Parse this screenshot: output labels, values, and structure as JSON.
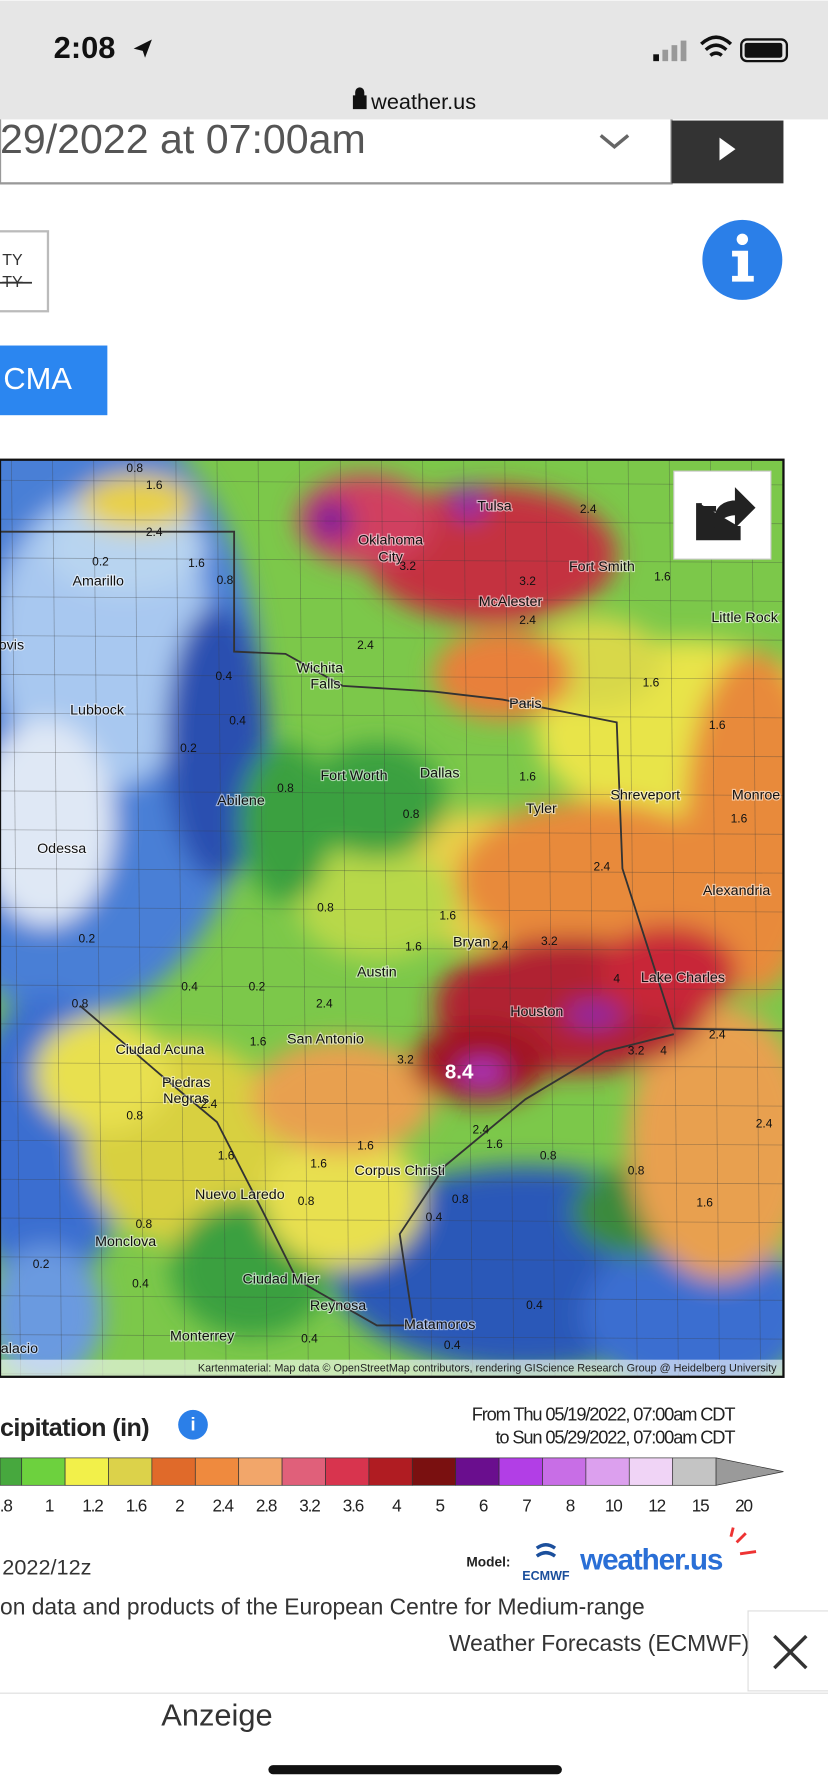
{
  "status": {
    "time": "2:08",
    "url": "weather.us"
  },
  "controls": {
    "date_text": "29/2022 at 07:00am",
    "toggle_top": "TY",
    "toggle_struck": "TY",
    "button": "CMA"
  },
  "map": {
    "attribution": "Kartenmaterial: Map data © OpenStreetMap contributors, rendering GIScience Research Group @ Heidelberg University",
    "cities": [
      "Tulsa",
      "Oklahoma",
      "City",
      "Fort Smith",
      "McAlester",
      "Little Rock",
      "Amarillo",
      "Wichita",
      "Falls",
      "Lubbock",
      "Paris",
      "Fort Worth",
      "Dallas",
      "Abilene",
      "Shreveport",
      "Monroe",
      "Tyler",
      "Odessa",
      "Alexandria",
      "Bryan",
      "Austin",
      "Lake Charles",
      "Houston",
      "Ciudad Acuna",
      "San Antonio",
      "Piedras",
      "Negras",
      "Corpus Christi",
      "Nuevo Laredo",
      "Monclova",
      "Ciudad Mier",
      "Reynosa",
      "Matamoros",
      "Monterrey",
      "alacio",
      "ovis"
    ],
    "values": [
      "0.8",
      "1.6",
      "2.4",
      "2.4",
      "0.2",
      "1.6",
      "0.8",
      "3.2",
      "3.2",
      "2.4",
      "1.6",
      "2.4",
      "1.6",
      "1.6",
      "0.4",
      "0.4",
      "0.2",
      "0.8",
      "0.8",
      "1.6",
      "1.6",
      "2.4",
      "0.8",
      "1.6",
      "1.6",
      "2.4",
      "3.2",
      "4",
      "0.2",
      "0.4",
      "0.2",
      "0.8",
      "2.4",
      "1.6",
      "3.2",
      "8.4",
      "3.2",
      "4",
      "2.4",
      "2.4",
      "0.8",
      "2.4",
      "1.6",
      "1.6",
      "1.6",
      "2.4",
      "0.8",
      "1.6",
      "0.8",
      "0.8",
      "0.4",
      "0.8",
      "1.6",
      "0.8",
      "0.4",
      "0.2",
      "0.4",
      "0.4",
      "0.4"
    ]
  },
  "legend": {
    "title": "cipitation (in)",
    "from": "From Thu 05/19/2022, 07:00am CDT",
    "to": "to Sun 05/29/2022, 07:00am CDT",
    "ticks": [
      ".8",
      "1",
      "1.2",
      "1.6",
      "2",
      "2.4",
      "2.8",
      "3.2",
      "3.6",
      "4",
      "5",
      "6",
      "7",
      "8",
      "10",
      "12",
      "15",
      "20"
    ]
  },
  "footer": {
    "run": "2022/12z",
    "model_label": "Model:",
    "ecmwf": "ECMWF",
    "brand": "weather.us",
    "credit_line1": "on data and products of the European Centre for Medium-range",
    "credit_line2": "Weather Forecasts (ECMWF)"
  },
  "ad": {
    "label": "Anzeige"
  }
}
